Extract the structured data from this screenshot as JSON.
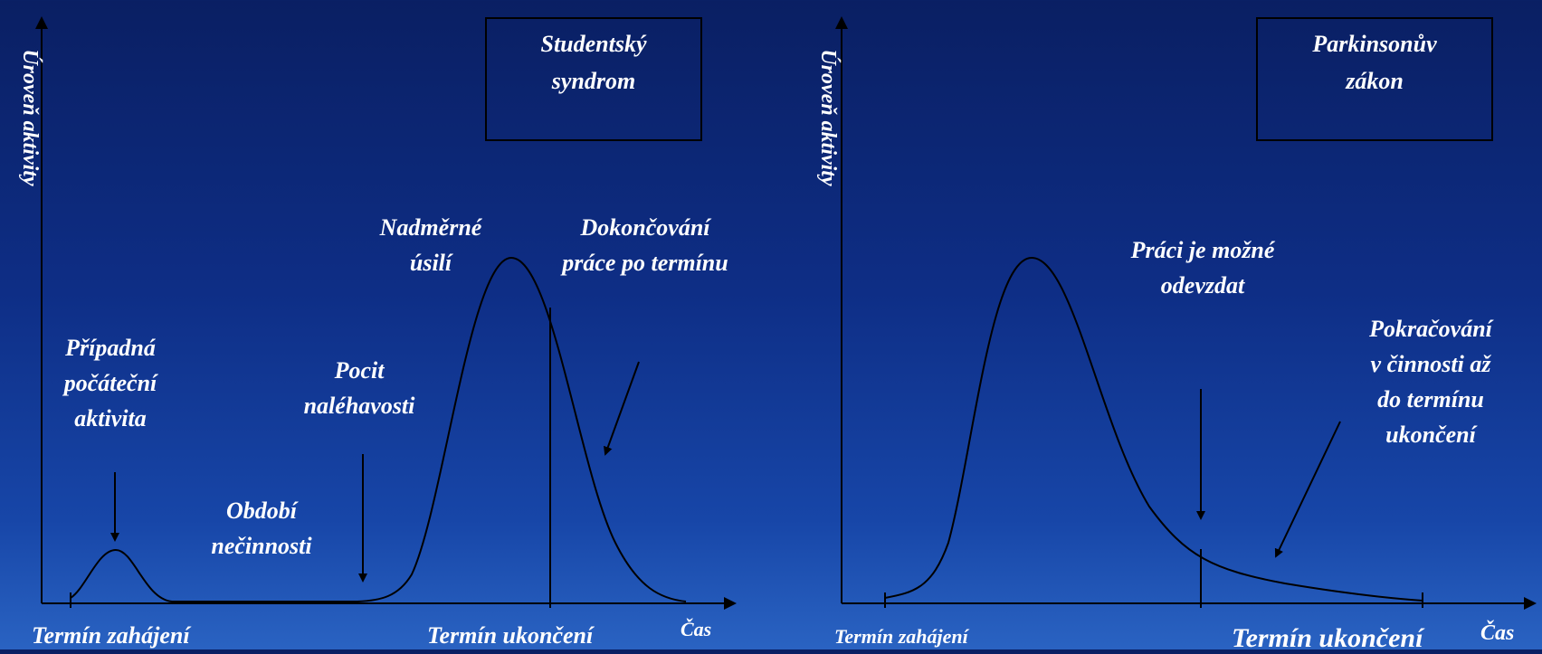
{
  "left": {
    "y_axis_label": "Úroveň aktivity",
    "title_lines": [
      "Studentský",
      "syndrom"
    ],
    "labels": {
      "initial_activity": [
        "Případná",
        "počáteční",
        "aktivita"
      ],
      "inactivity": [
        "Období",
        "nečinnosti"
      ],
      "urgency": [
        "Pocit",
        "naléhavosti"
      ],
      "excess_effort": [
        "Nadměrné",
        "úsilí"
      ],
      "finishing": [
        "Dokončování",
        "práce po termínu"
      ]
    },
    "x_labels": {
      "start": "Termín zahájení",
      "end": "Termín ukončení",
      "time": "Čas"
    }
  },
  "right": {
    "y_axis_label": "Úroveň aktivity",
    "title_lines": [
      "Parkinsonův",
      "zákon"
    ],
    "labels": {
      "can_submit": [
        "Práci je možné",
        "odevzdat"
      ],
      "continuing": [
        "Pokračování",
        "v činnosti až",
        "do termínu",
        "ukončení"
      ]
    },
    "x_labels": {
      "start": "Termín zahájení",
      "end": "Termín ukončení",
      "time": "Čas"
    }
  }
}
